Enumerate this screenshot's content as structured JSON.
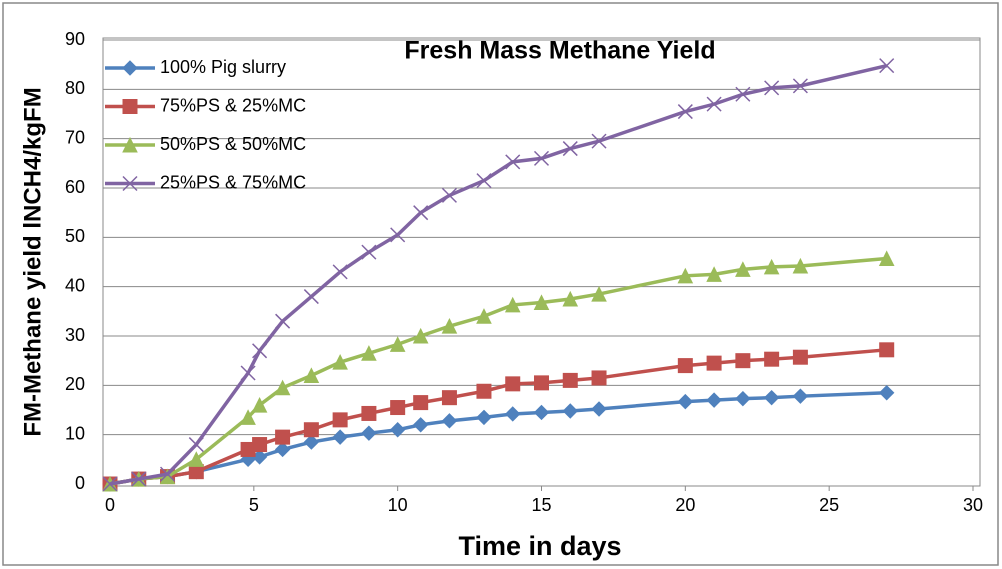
{
  "chart_data": {
    "type": "line",
    "title": "Fresh Mass Methane Yield",
    "x_label": "Time in days",
    "y_label": "FM-Methane yield lNCH4/kgFM",
    "x": [
      0,
      1,
      2,
      3,
      4.8,
      5.2,
      6,
      7,
      8,
      9,
      10,
      10.8,
      11.8,
      13,
      14,
      15,
      16,
      17,
      20,
      21,
      22,
      23,
      24,
      27
    ],
    "series": [
      {
        "name": "100% Pig slurry",
        "color": "#4f81bd",
        "marker": "diamond",
        "values": [
          0,
          1,
          1.5,
          2.5,
          5,
          5.5,
          7,
          8.5,
          9.5,
          10.3,
          11,
          12,
          12.8,
          13.5,
          14.2,
          14.5,
          14.8,
          15.2,
          16.7,
          17,
          17.3,
          17.5,
          17.8,
          18.5
        ]
      },
      {
        "name": "75%PS & 25%MC",
        "color": "#c0504d",
        "marker": "square",
        "values": [
          0,
          1,
          1.5,
          2.5,
          7,
          8,
          9.5,
          11,
          13,
          14.3,
          15.5,
          16.5,
          17.5,
          18.8,
          20.3,
          20.5,
          21,
          21.5,
          24,
          24.5,
          25,
          25.3,
          25.7,
          27.2
        ]
      },
      {
        "name": "50%PS & 50%MC",
        "color": "#9bbb59",
        "marker": "triangle",
        "values": [
          0,
          1,
          1.5,
          5,
          13.5,
          16,
          19.5,
          22,
          24.7,
          26.5,
          28.3,
          30,
          32,
          34,
          36.3,
          36.8,
          37.5,
          38.5,
          42.2,
          42.5,
          43.5,
          44,
          44.2,
          45.7
        ]
      },
      {
        "name": "25%PS & 75%MC",
        "color": "#8064a2",
        "marker": "x",
        "values": [
          0,
          1,
          2,
          8,
          22.5,
          27,
          33,
          38,
          43,
          47,
          50.5,
          55,
          58.5,
          61.5,
          65.3,
          66,
          68,
          69.5,
          75.5,
          77,
          79,
          80.3,
          80.7,
          84.8
        ]
      }
    ],
    "xlim": [
      0,
      30
    ],
    "xticks": [
      0,
      5,
      10,
      15,
      20,
      25,
      30
    ],
    "ylim": [
      0,
      90
    ],
    "yticks": [
      0,
      10,
      20,
      30,
      40,
      50,
      60,
      70,
      80,
      90
    ],
    "grid": true,
    "legend": "upper left"
  }
}
